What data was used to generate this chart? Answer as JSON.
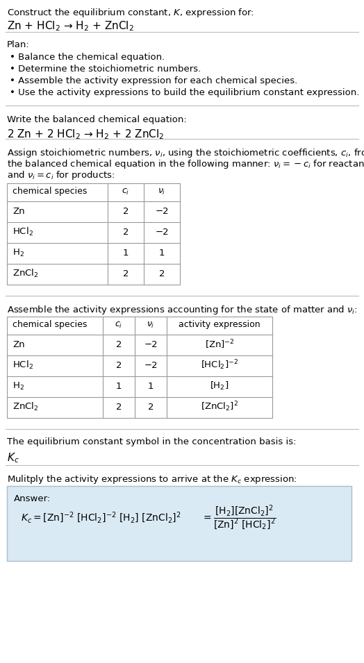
{
  "title_line1": "Construct the equilibrium constant, $K$, expression for:",
  "title_line2": "Zn + HCl$_2$ → H$_2$ + ZnCl$_2$",
  "plan_header": "Plan:",
  "plan_items": [
    "• Balance the chemical equation.",
    "• Determine the stoichiometric numbers.",
    "• Assemble the activity expression for each chemical species.",
    "• Use the activity expressions to build the equilibrium constant expression."
  ],
  "balanced_header": "Write the balanced chemical equation:",
  "balanced_eq": "2 Zn + 2 HCl$_2$ → H$_2$ + 2 ZnCl$_2$",
  "stoich_intro_lines": [
    "Assign stoichiometric numbers, $\\nu_i$, using the stoichiometric coefficients, $c_i$, from",
    "the balanced chemical equation in the following manner: $\\nu_i = -c_i$ for reactants",
    "and $\\nu_i = c_i$ for products:"
  ],
  "table1_headers": [
    "chemical species",
    "$c_i$",
    "$\\nu_i$"
  ],
  "table1_rows": [
    [
      "Zn",
      "2",
      "−2"
    ],
    [
      "HCl$_2$",
      "2",
      "−2"
    ],
    [
      "H$_2$",
      "1",
      "1"
    ],
    [
      "ZnCl$_2$",
      "2",
      "2"
    ]
  ],
  "activity_intro": "Assemble the activity expressions accounting for the state of matter and $\\nu_i$:",
  "table2_headers": [
    "chemical species",
    "$c_i$",
    "$\\nu_i$",
    "activity expression"
  ],
  "table2_rows": [
    [
      "Zn",
      "2",
      "−2",
      "[Zn]$^{-2}$"
    ],
    [
      "HCl$_2$",
      "2",
      "−2",
      "[HCl$_2$]$^{-2}$"
    ],
    [
      "H$_2$",
      "1",
      "1",
      "[H$_2$]"
    ],
    [
      "ZnCl$_2$",
      "2",
      "2",
      "[ZnCl$_2$]$^2$"
    ]
  ],
  "kc_header": "The equilibrium constant symbol in the concentration basis is:",
  "kc_symbol": "$K_c$",
  "multiply_header": "Mulitply the activity expressions to arrive at the $K_c$ expression:",
  "answer_label": "Answer:",
  "bg_color": "#ffffff",
  "text_color": "#000000",
  "table_border_color": "#999999",
  "answer_box_color": "#daeaf5",
  "separator_color": "#bbbbbb",
  "font_size": 9.5,
  "fig_width": 5.24,
  "fig_height": 9.55
}
